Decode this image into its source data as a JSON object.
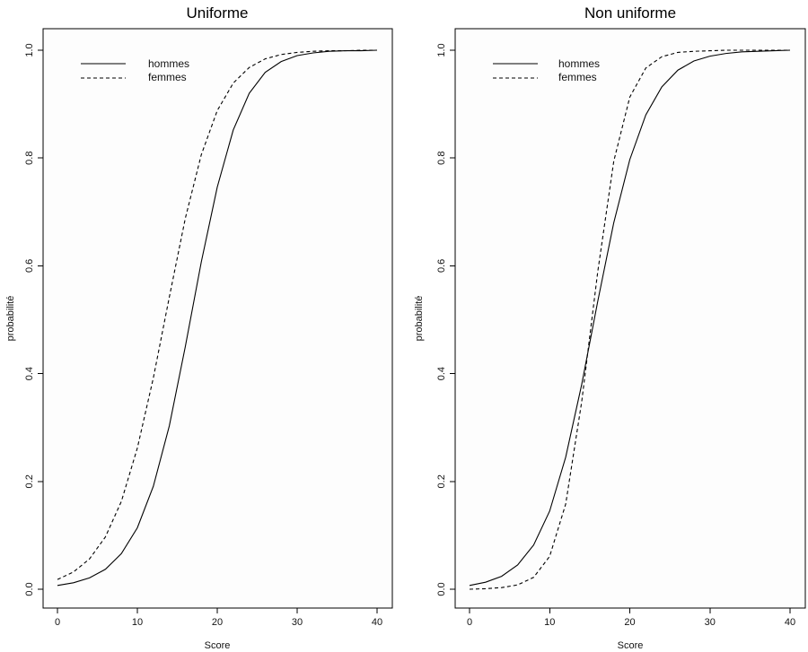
{
  "chart_data": [
    {
      "type": "line",
      "title": "Uniforme",
      "xlabel": "Score",
      "ylabel": "probabilité",
      "xlim": [
        0,
        40
      ],
      "ylim": [
        0,
        1
      ],
      "xticks": [
        "0",
        "10",
        "20",
        "30",
        "40"
      ],
      "yticks": [
        "0.0",
        "0.2",
        "0.4",
        "0.6",
        "0.8",
        "1.0"
      ],
      "grid": false,
      "legend_position": "top-left",
      "x": [
        0,
        2,
        4,
        6,
        8,
        10,
        12,
        14,
        16,
        18,
        20,
        22,
        24,
        26,
        28,
        30,
        32,
        34,
        36,
        38,
        40
      ],
      "series": [
        {
          "name": "hommes",
          "line_style": "solid",
          "values": [
            0.007,
            0.012,
            0.021,
            0.037,
            0.066,
            0.114,
            0.191,
            0.303,
            0.45,
            0.607,
            0.746,
            0.852,
            0.92,
            0.959,
            0.979,
            0.99,
            0.995,
            0.998,
            0.999,
            0.999,
            1.0
          ]
        },
        {
          "name": "femmes",
          "line_style": "dashed",
          "values": [
            0.018,
            0.032,
            0.056,
            0.097,
            0.163,
            0.262,
            0.392,
            0.542,
            0.688,
            0.806,
            0.888,
            0.939,
            0.968,
            0.984,
            0.992,
            0.996,
            0.998,
            0.999,
            0.999,
            1.0,
            1.0
          ]
        }
      ]
    },
    {
      "type": "line",
      "title": "Non uniforme",
      "xlabel": "Score",
      "ylabel": "probabilité",
      "xlim": [
        0,
        40
      ],
      "ylim": [
        0,
        1
      ],
      "xticks": [
        "0",
        "10",
        "20",
        "30",
        "40"
      ],
      "yticks": [
        "0.0",
        "0.2",
        "0.4",
        "0.6",
        "0.8",
        "1.0"
      ],
      "grid": false,
      "legend_position": "top-left",
      "x": [
        0,
        2,
        4,
        6,
        8,
        10,
        12,
        14,
        16,
        18,
        20,
        22,
        24,
        26,
        28,
        30,
        32,
        34,
        36,
        38,
        40
      ],
      "series": [
        {
          "name": "hommes",
          "line_style": "solid",
          "values": [
            0.007,
            0.013,
            0.024,
            0.045,
            0.082,
            0.145,
            0.245,
            0.38,
            0.534,
            0.68,
            0.797,
            0.88,
            0.932,
            0.963,
            0.98,
            0.989,
            0.994,
            0.997,
            0.998,
            0.999,
            1.0
          ]
        },
        {
          "name": "femmes",
          "line_style": "dashed",
          "values": [
            0.0,
            0.001,
            0.003,
            0.008,
            0.022,
            0.061,
            0.158,
            0.348,
            0.589,
            0.794,
            0.913,
            0.967,
            0.988,
            0.996,
            0.998,
            0.999,
            1.0,
            1.0,
            1.0,
            1.0,
            1.0
          ]
        }
      ]
    }
  ]
}
